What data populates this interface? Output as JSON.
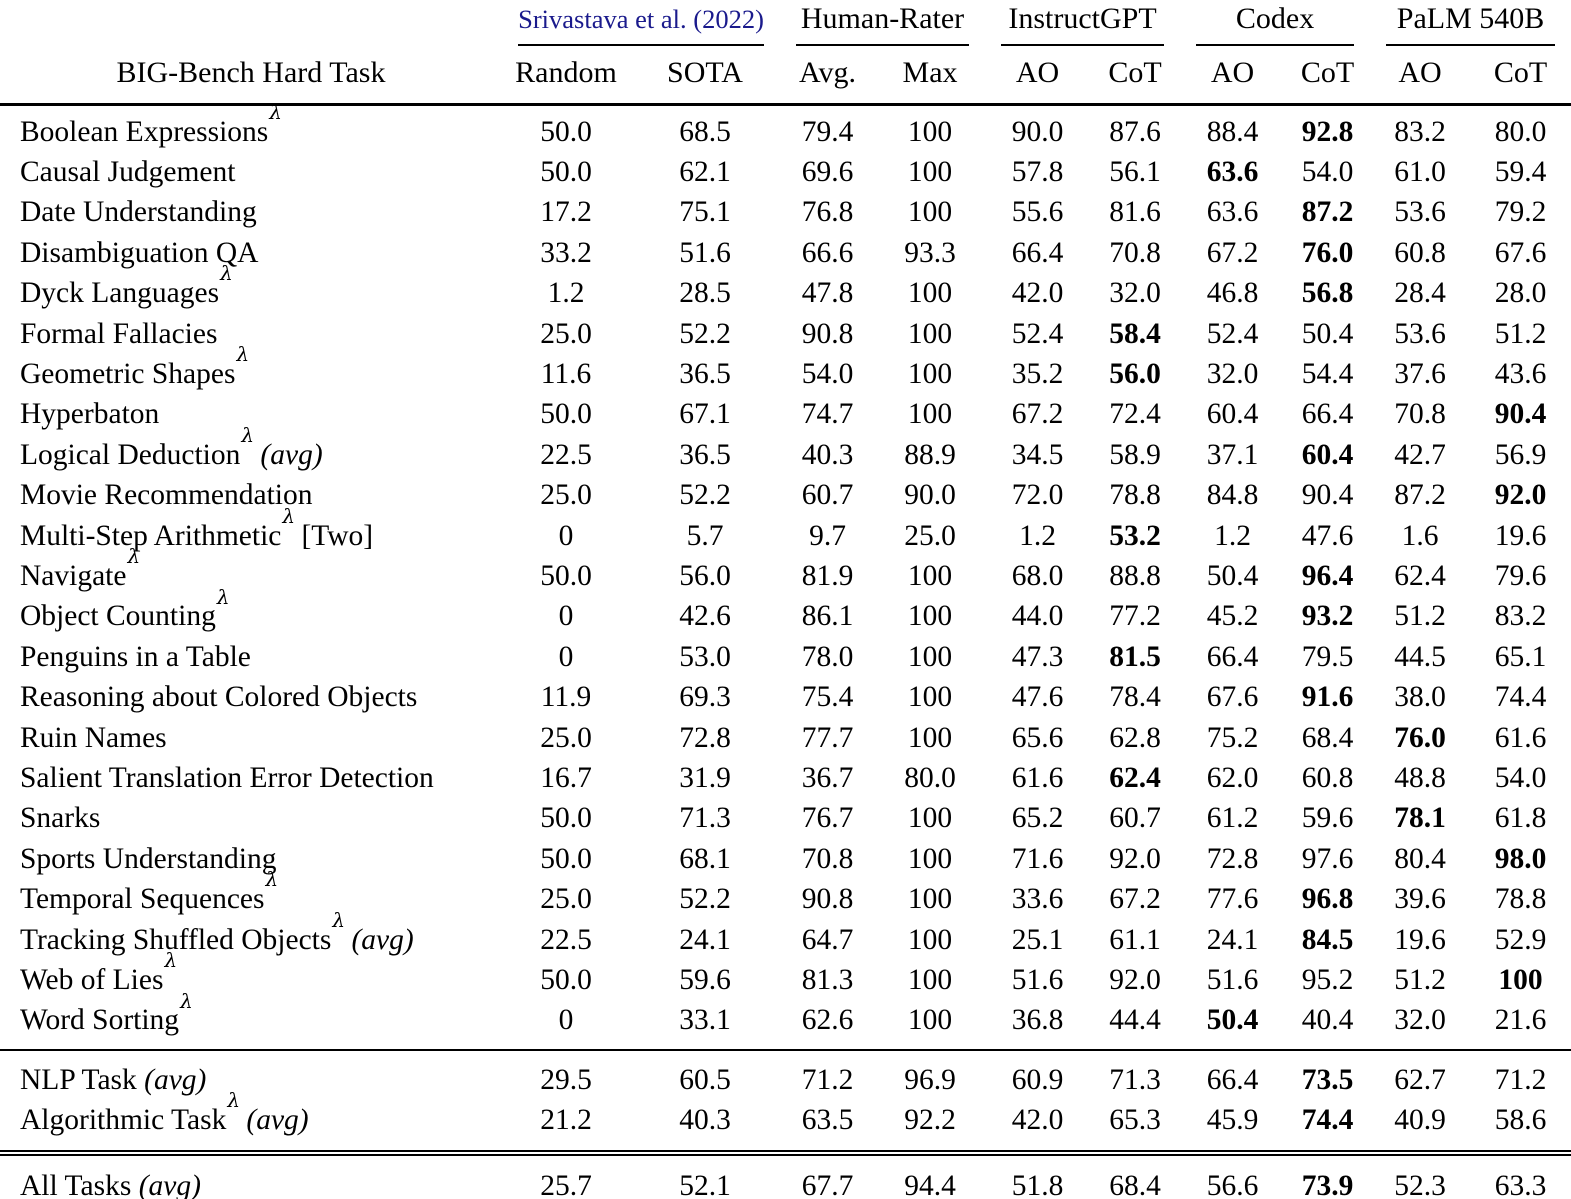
{
  "colors": {
    "citation_link": "#1a1a8c",
    "text": "#000000",
    "background": "#ffffff"
  },
  "header": {
    "task_col": "BIG-Bench Hard Task",
    "groups": [
      {
        "label": "Srivastava et al. (2022)",
        "is_link": true,
        "cols": [
          "Random",
          "SOTA"
        ]
      },
      {
        "label": "Human-Rater",
        "is_link": false,
        "cols": [
          "Avg.",
          "Max"
        ]
      },
      {
        "label": "InstructGPT",
        "is_link": false,
        "cols": [
          "AO",
          "CoT"
        ]
      },
      {
        "label": "Codex",
        "is_link": false,
        "cols": [
          "AO",
          "CoT"
        ]
      },
      {
        "label": "PaLM 540B",
        "is_link": false,
        "cols": [
          "AO",
          "CoT"
        ]
      }
    ]
  },
  "rows": [
    {
      "task": "Boolean Expressions",
      "sup": "λ",
      "note": "",
      "note_italic": false,
      "values": [
        "50.0",
        "68.5",
        "79.4",
        "100",
        "90.0",
        "87.6",
        "88.4",
        "92.8",
        "83.2",
        "80.0"
      ],
      "bold": [
        7
      ]
    },
    {
      "task": "Causal Judgement",
      "sup": "",
      "note": "",
      "note_italic": false,
      "values": [
        "50.0",
        "62.1",
        "69.6",
        "100",
        "57.8",
        "56.1",
        "63.6",
        "54.0",
        "61.0",
        "59.4"
      ],
      "bold": [
        6
      ]
    },
    {
      "task": "Date Understanding",
      "sup": "",
      "note": "",
      "note_italic": false,
      "values": [
        "17.2",
        "75.1",
        "76.8",
        "100",
        "55.6",
        "81.6",
        "63.6",
        "87.2",
        "53.6",
        "79.2"
      ],
      "bold": [
        7
      ]
    },
    {
      "task": "Disambiguation QA",
      "sup": "",
      "note": "",
      "note_italic": false,
      "values": [
        "33.2",
        "51.6",
        "66.6",
        "93.3",
        "66.4",
        "70.8",
        "67.2",
        "76.0",
        "60.8",
        "67.6"
      ],
      "bold": [
        7
      ]
    },
    {
      "task": "Dyck Languages",
      "sup": "λ",
      "note": "",
      "note_italic": false,
      "values": [
        "1.2",
        "28.5",
        "47.8",
        "100",
        "42.0",
        "32.0",
        "46.8",
        "56.8",
        "28.4",
        "28.0"
      ],
      "bold": [
        7
      ]
    },
    {
      "task": "Formal Fallacies",
      "sup": "",
      "note": "",
      "note_italic": false,
      "values": [
        "25.0",
        "52.2",
        "90.8",
        "100",
        "52.4",
        "58.4",
        "52.4",
        "50.4",
        "53.6",
        "51.2"
      ],
      "bold": [
        5
      ]
    },
    {
      "task": "Geometric Shapes",
      "sup": "λ",
      "note": "",
      "note_italic": false,
      "values": [
        "11.6",
        "36.5",
        "54.0",
        "100",
        "35.2",
        "56.0",
        "32.0",
        "54.4",
        "37.6",
        "43.6"
      ],
      "bold": [
        5
      ]
    },
    {
      "task": "Hyperbaton",
      "sup": "",
      "note": "",
      "note_italic": false,
      "values": [
        "50.0",
        "67.1",
        "74.7",
        "100",
        "67.2",
        "72.4",
        "60.4",
        "66.4",
        "70.8",
        "90.4"
      ],
      "bold": [
        9
      ]
    },
    {
      "task": "Logical Deduction",
      "sup": "λ",
      "note": "(avg)",
      "note_italic": true,
      "values": [
        "22.5",
        "36.5",
        "40.3",
        "88.9",
        "34.5",
        "58.9",
        "37.1",
        "60.4",
        "42.7",
        "56.9"
      ],
      "bold": [
        7
      ]
    },
    {
      "task": "Movie Recommendation",
      "sup": "",
      "note": "",
      "note_italic": false,
      "values": [
        "25.0",
        "52.2",
        "60.7",
        "90.0",
        "72.0",
        "78.8",
        "84.8",
        "90.4",
        "87.2",
        "92.0"
      ],
      "bold": [
        9
      ]
    },
    {
      "task": "Multi-Step Arithmetic",
      "sup": "λ",
      "note": "[Two]",
      "note_italic": false,
      "values": [
        "0",
        "5.7",
        "9.7",
        "25.0",
        "1.2",
        "53.2",
        "1.2",
        "47.6",
        "1.6",
        "19.6"
      ],
      "bold": [
        5
      ]
    },
    {
      "task": "Navigate",
      "sup": "λ",
      "note": "",
      "note_italic": false,
      "values": [
        "50.0",
        "56.0",
        "81.9",
        "100",
        "68.0",
        "88.8",
        "50.4",
        "96.4",
        "62.4",
        "79.6"
      ],
      "bold": [
        7
      ]
    },
    {
      "task": "Object Counting",
      "sup": "λ",
      "note": "",
      "note_italic": false,
      "values": [
        "0",
        "42.6",
        "86.1",
        "100",
        "44.0",
        "77.2",
        "45.2",
        "93.2",
        "51.2",
        "83.2"
      ],
      "bold": [
        7
      ]
    },
    {
      "task": "Penguins in a Table",
      "sup": "",
      "note": "",
      "note_italic": false,
      "values": [
        "0",
        "53.0",
        "78.0",
        "100",
        "47.3",
        "81.5",
        "66.4",
        "79.5",
        "44.5",
        "65.1"
      ],
      "bold": [
        5
      ]
    },
    {
      "task": "Reasoning about Colored Objects",
      "sup": "",
      "note": "",
      "note_italic": false,
      "values": [
        "11.9",
        "69.3",
        "75.4",
        "100",
        "47.6",
        "78.4",
        "67.6",
        "91.6",
        "38.0",
        "74.4"
      ],
      "bold": [
        7
      ]
    },
    {
      "task": "Ruin Names",
      "sup": "",
      "note": "",
      "note_italic": false,
      "values": [
        "25.0",
        "72.8",
        "77.7",
        "100",
        "65.6",
        "62.8",
        "75.2",
        "68.4",
        "76.0",
        "61.6"
      ],
      "bold": [
        8
      ]
    },
    {
      "task": "Salient Translation Error Detection",
      "sup": "",
      "note": "",
      "note_italic": false,
      "values": [
        "16.7",
        "31.9",
        "36.7",
        "80.0",
        "61.6",
        "62.4",
        "62.0",
        "60.8",
        "48.8",
        "54.0"
      ],
      "bold": [
        5
      ]
    },
    {
      "task": "Snarks",
      "sup": "",
      "note": "",
      "note_italic": false,
      "values": [
        "50.0",
        "71.3",
        "76.7",
        "100",
        "65.2",
        "60.7",
        "61.2",
        "59.6",
        "78.1",
        "61.8"
      ],
      "bold": [
        8
      ]
    },
    {
      "task": "Sports Understanding",
      "sup": "",
      "note": "",
      "note_italic": false,
      "values": [
        "50.0",
        "68.1",
        "70.8",
        "100",
        "71.6",
        "92.0",
        "72.8",
        "97.6",
        "80.4",
        "98.0"
      ],
      "bold": [
        9
      ]
    },
    {
      "task": "Temporal Sequences",
      "sup": "λ",
      "note": "",
      "note_italic": false,
      "values": [
        "25.0",
        "52.2",
        "90.8",
        "100",
        "33.6",
        "67.2",
        "77.6",
        "96.8",
        "39.6",
        "78.8"
      ],
      "bold": [
        7
      ]
    },
    {
      "task": "Tracking Shuffled Objects",
      "sup": "λ",
      "note": "(avg)",
      "note_italic": true,
      "values": [
        "22.5",
        "24.1",
        "64.7",
        "100",
        "25.1",
        "61.1",
        "24.1",
        "84.5",
        "19.6",
        "52.9"
      ],
      "bold": [
        7
      ]
    },
    {
      "task": "Web of Lies",
      "sup": "λ",
      "note": "",
      "note_italic": false,
      "values": [
        "50.0",
        "59.6",
        "81.3",
        "100",
        "51.6",
        "92.0",
        "51.6",
        "95.2",
        "51.2",
        "100"
      ],
      "bold": [
        9
      ]
    },
    {
      "task": "Word Sorting",
      "sup": "λ",
      "note": "",
      "note_italic": false,
      "values": [
        "0",
        "33.1",
        "62.6",
        "100",
        "36.8",
        "44.4",
        "50.4",
        "40.4",
        "32.0",
        "21.6"
      ],
      "bold": [
        6
      ]
    }
  ],
  "summary_rows": [
    {
      "task": "NLP Task",
      "sup": "",
      "note": "(avg)",
      "note_italic": true,
      "values": [
        "29.5",
        "60.5",
        "71.2",
        "96.9",
        "60.9",
        "71.3",
        "66.4",
        "73.5",
        "62.7",
        "71.2"
      ],
      "bold": [
        7
      ]
    },
    {
      "task": "Algorithmic Task",
      "sup": "λ",
      "note": "(avg)",
      "note_italic": true,
      "values": [
        "21.2",
        "40.3",
        "63.5",
        "92.2",
        "42.0",
        "65.3",
        "45.9",
        "74.4",
        "40.9",
        "58.6"
      ],
      "bold": [
        7
      ]
    }
  ],
  "final_rows": [
    {
      "task": "All Tasks",
      "sup": "",
      "note": "(avg)",
      "note_italic": true,
      "values": [
        "25.7",
        "52.1",
        "67.7",
        "94.4",
        "51.8",
        "68.4",
        "56.6",
        "73.9",
        "52.3",
        "63.3"
      ],
      "bold": [
        7
      ]
    }
  ]
}
